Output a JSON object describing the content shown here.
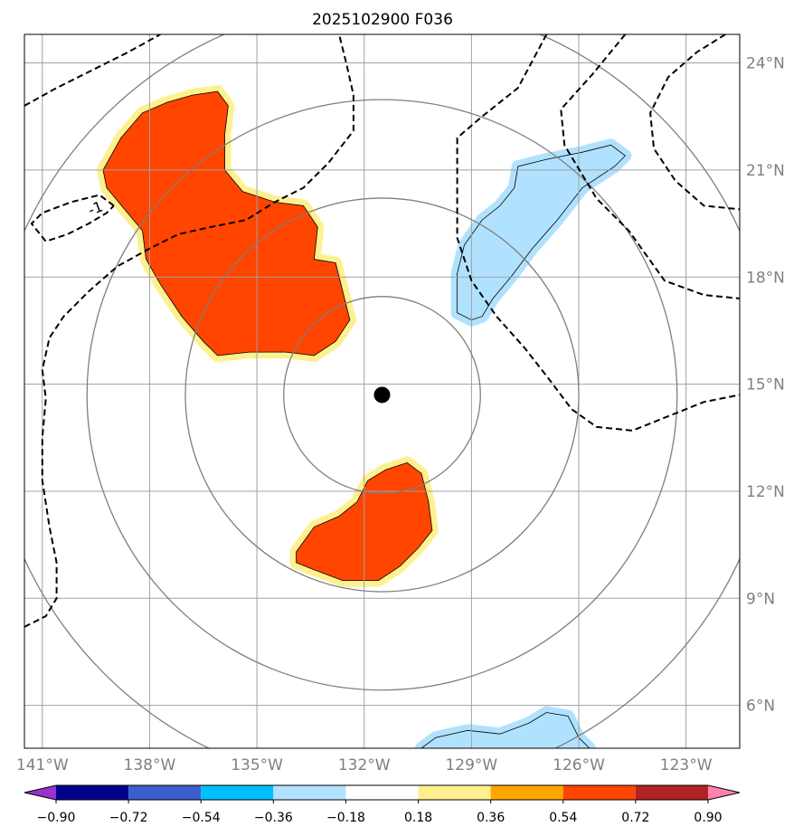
{
  "title": "2025102900 F036",
  "map": {
    "lon_range": [
      -141.5,
      -121.5
    ],
    "lat_range": [
      4.8,
      24.8
    ],
    "center": {
      "lon": -131.5,
      "lat": 14.7,
      "marker": "storm-center-dot"
    },
    "lon_ticks": [
      {
        "value": -141,
        "label": "141°W"
      },
      {
        "value": -138,
        "label": "138°W"
      },
      {
        "value": -135,
        "label": "135°W"
      },
      {
        "value": -132,
        "label": "132°W"
      },
      {
        "value": -129,
        "label": "129°W"
      },
      {
        "value": -126,
        "label": "126°W"
      },
      {
        "value": -123,
        "label": "123°W"
      }
    ],
    "lat_ticks": [
      {
        "value": 24,
        "label": "24°N"
      },
      {
        "value": 21,
        "label": "21°N"
      },
      {
        "value": 18,
        "label": "18°N"
      },
      {
        "value": 15,
        "label": "15°N"
      },
      {
        "value": 12,
        "label": "12°N"
      },
      {
        "value": 9,
        "label": "9°N"
      },
      {
        "value": 6,
        "label": "6°N"
      }
    ],
    "range_rings_deg": [
      2.75,
      5.5,
      8.25,
      11.0
    ],
    "contour_label": "-1",
    "features": [
      {
        "name": "positive-anomaly-north",
        "level": 0.54,
        "lonlat": [
          [
            -139.3,
            21.0
          ],
          [
            -138.8,
            21.9
          ],
          [
            -138.2,
            22.6
          ],
          [
            -137.5,
            22.9
          ],
          [
            -136.8,
            23.1
          ],
          [
            -136.1,
            23.2
          ],
          [
            -135.8,
            22.8
          ],
          [
            -135.9,
            22.0
          ],
          [
            -135.9,
            21.0
          ],
          [
            -135.4,
            20.4
          ],
          [
            -134.5,
            20.1
          ],
          [
            -133.7,
            20.0
          ],
          [
            -133.3,
            19.4
          ],
          [
            -133.4,
            18.5
          ],
          [
            -132.8,
            18.4
          ],
          [
            -132.6,
            17.6
          ],
          [
            -132.4,
            16.8
          ],
          [
            -132.8,
            16.2
          ],
          [
            -133.4,
            15.8
          ],
          [
            -134.2,
            15.9
          ],
          [
            -135.2,
            15.9
          ],
          [
            -136.1,
            15.8
          ],
          [
            -136.5,
            16.2
          ],
          [
            -137.1,
            16.9
          ],
          [
            -137.7,
            17.8
          ],
          [
            -138.1,
            18.5
          ],
          [
            -138.2,
            19.3
          ],
          [
            -138.7,
            19.9
          ],
          [
            -139.2,
            20.5
          ]
        ]
      },
      {
        "name": "positive-anomaly-south",
        "level": 0.54,
        "lonlat": [
          [
            -133.9,
            10.3
          ],
          [
            -133.4,
            11.0
          ],
          [
            -132.7,
            11.3
          ],
          [
            -132.2,
            11.7
          ],
          [
            -131.9,
            12.3
          ],
          [
            -131.4,
            12.6
          ],
          [
            -130.8,
            12.8
          ],
          [
            -130.4,
            12.5
          ],
          [
            -130.2,
            11.7
          ],
          [
            -130.1,
            10.9
          ],
          [
            -130.5,
            10.4
          ],
          [
            -131.0,
            9.9
          ],
          [
            -131.6,
            9.5
          ],
          [
            -132.6,
            9.5
          ],
          [
            -133.4,
            9.8
          ],
          [
            -133.9,
            10.0
          ]
        ]
      },
      {
        "name": "negative-anomaly-northeast",
        "level": -0.36,
        "lonlat": [
          [
            -129.4,
            17.0
          ],
          [
            -129.4,
            18.1
          ],
          [
            -129.2,
            18.9
          ],
          [
            -128.7,
            19.6
          ],
          [
            -128.2,
            20.0
          ],
          [
            -127.8,
            20.5
          ],
          [
            -127.7,
            21.1
          ],
          [
            -126.9,
            21.3
          ],
          [
            -125.9,
            21.5
          ],
          [
            -125.1,
            21.7
          ],
          [
            -124.7,
            21.4
          ],
          [
            -125.0,
            21.1
          ],
          [
            -125.9,
            20.5
          ],
          [
            -126.6,
            19.6
          ],
          [
            -127.3,
            18.8
          ],
          [
            -127.9,
            18.0
          ],
          [
            -128.4,
            17.4
          ],
          [
            -128.7,
            16.9
          ],
          [
            -129.0,
            16.8
          ]
        ]
      },
      {
        "name": "negative-anomaly-southeast",
        "level": -0.36,
        "lonlat": [
          [
            -130.4,
            4.8
          ],
          [
            -130.0,
            5.1
          ],
          [
            -129.1,
            5.3
          ],
          [
            -128.2,
            5.2
          ],
          [
            -127.4,
            5.5
          ],
          [
            -126.9,
            5.8
          ],
          [
            -126.3,
            5.7
          ],
          [
            -126.0,
            5.1
          ],
          [
            -125.7,
            4.8
          ]
        ]
      }
    ],
    "dashed_contours": [
      {
        "name": "dashed-contour-west",
        "lonlat": [
          [
            -141.5,
            8.2
          ],
          [
            -140.9,
            8.5
          ],
          [
            -140.6,
            9.0
          ],
          [
            -140.6,
            10.0
          ],
          [
            -140.8,
            11.0
          ],
          [
            -141.0,
            12.3
          ],
          [
            -141.0,
            13.5
          ],
          [
            -140.9,
            14.6
          ],
          [
            -141.0,
            15.4
          ],
          [
            -140.8,
            16.3
          ],
          [
            -140.4,
            16.9
          ],
          [
            -139.7,
            17.6
          ],
          [
            -138.9,
            18.3
          ],
          [
            -138.0,
            18.8
          ],
          [
            -137.2,
            19.2
          ],
          [
            -136.3,
            19.4
          ],
          [
            -135.3,
            19.6
          ],
          [
            -134.5,
            20.1
          ],
          [
            -133.7,
            20.5
          ],
          [
            -133.0,
            21.2
          ],
          [
            -132.3,
            22.1
          ],
          [
            -132.3,
            23.1
          ],
          [
            -132.5,
            24.0
          ],
          [
            -132.7,
            24.8
          ]
        ]
      },
      {
        "name": "dashed-contour-nw",
        "lonlat": [
          [
            -141.5,
            22.8
          ],
          [
            -140.6,
            23.3
          ],
          [
            -139.6,
            23.8
          ],
          [
            -138.6,
            24.3
          ],
          [
            -137.7,
            24.8
          ]
        ]
      },
      {
        "name": "dashed-contour-closed",
        "lonlat": [
          [
            -139.0,
            20.0
          ],
          [
            -139.4,
            20.3
          ],
          [
            -140.2,
            20.1
          ],
          [
            -141.0,
            19.8
          ],
          [
            -141.3,
            19.5
          ],
          [
            -140.9,
            19.0
          ],
          [
            -140.3,
            19.2
          ],
          [
            -139.7,
            19.5
          ],
          [
            -139.2,
            19.8
          ],
          [
            -139.0,
            20.0
          ]
        ]
      },
      {
        "name": "dashed-contour-east",
        "lonlat": [
          [
            -126.9,
            24.8
          ],
          [
            -127.7,
            23.3
          ],
          [
            -128.7,
            22.5
          ],
          [
            -129.4,
            21.9
          ],
          [
            -129.4,
            20.6
          ],
          [
            -129.4,
            19.1
          ],
          [
            -129.0,
            17.9
          ],
          [
            -128.3,
            16.9
          ],
          [
            -127.5,
            16.0
          ],
          [
            -126.8,
            15.1
          ],
          [
            -126.2,
            14.3
          ],
          [
            -125.5,
            13.8
          ],
          [
            -124.5,
            13.7
          ],
          [
            -123.5,
            14.1
          ],
          [
            -122.5,
            14.5
          ],
          [
            -121.5,
            14.7
          ]
        ]
      },
      {
        "name": "dashed-contour-northeast",
        "lonlat": [
          [
            -124.7,
            24.8
          ],
          [
            -125.6,
            23.7
          ],
          [
            -126.5,
            22.7
          ],
          [
            -126.4,
            21.7
          ],
          [
            -125.5,
            20.2
          ],
          [
            -124.6,
            19.3
          ],
          [
            -123.6,
            17.9
          ],
          [
            -122.5,
            17.5
          ],
          [
            -121.5,
            17.4
          ]
        ]
      },
      {
        "name": "dashed-contour-far-east",
        "lonlat": [
          [
            -121.9,
            24.8
          ],
          [
            -122.7,
            24.3
          ],
          [
            -123.5,
            23.6
          ],
          [
            -124.0,
            22.6
          ],
          [
            -123.9,
            21.6
          ],
          [
            -123.3,
            20.7
          ],
          [
            -122.5,
            20.0
          ],
          [
            -121.5,
            19.9
          ]
        ]
      }
    ]
  },
  "colorbar": {
    "levels": [
      -0.9,
      -0.72,
      -0.54,
      -0.36,
      -0.18,
      0.18,
      0.36,
      0.54,
      0.72,
      0.9
    ],
    "tick_labels": [
      "−0.90",
      "−0.72",
      "−0.54",
      "−0.36",
      "−0.18",
      "0.18",
      "0.36",
      "0.54",
      "0.72",
      "0.90"
    ],
    "colors": [
      "#9932cc",
      "#00008b",
      "#3a5fcd",
      "#00bfff",
      "#b0e2ff",
      "#ffffff",
      "#fff08f",
      "#ffa500",
      "#ff4500",
      "#b22222",
      "#ff82ab"
    ]
  }
}
